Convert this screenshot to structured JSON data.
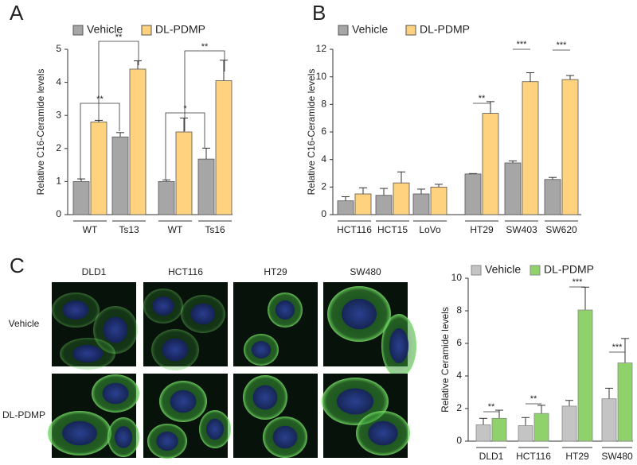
{
  "panels": [
    "A",
    "B",
    "C"
  ],
  "microscopy": {
    "columns": [
      "DLD1",
      "HCT116",
      "HT29",
      "SW480"
    ],
    "rows": [
      "Vehicle",
      "DL-PDMP"
    ]
  },
  "chart_data": [
    {
      "type": "bar",
      "ylabel": "Relative C16-Ceramide levels",
      "categories": [
        "WT",
        "Ts13",
        "WT",
        "Ts16"
      ],
      "series": [
        {
          "name": "Vehicle",
          "color": "#a6a6a6",
          "values": [
            1.0,
            2.35,
            1.0,
            1.68
          ],
          "errors": [
            0.08,
            0.13,
            0.05,
            0.33
          ]
        },
        {
          "name": "DL-PDMP",
          "color": "#ffd27f",
          "values": [
            2.8,
            4.4,
            2.5,
            4.05
          ],
          "errors": [
            0.05,
            0.25,
            0.42,
            0.62
          ]
        }
      ],
      "ylim": [
        0,
        5
      ],
      "yticks": [
        0,
        1,
        2,
        3,
        4,
        5
      ],
      "annotations": [
        "**",
        "**",
        "*",
        "**"
      ]
    },
    {
      "type": "bar",
      "ylabel": "Relative C16-Ceramide levels",
      "categories": [
        "HCT116",
        "HCT15",
        "LoVo",
        "HT29",
        "SW403",
        "SW620"
      ],
      "series": [
        {
          "name": "Vehicle",
          "color": "#a6a6a6",
          "values": [
            1.0,
            1.4,
            1.5,
            2.95,
            3.75,
            2.55
          ],
          "errors": [
            0.3,
            0.5,
            0.35,
            0.03,
            0.15,
            0.15
          ]
        },
        {
          "name": "DL-PDMP",
          "color": "#ffd27f",
          "values": [
            1.5,
            2.3,
            2.0,
            7.35,
            9.65,
            9.8
          ],
          "errors": [
            0.45,
            0.8,
            0.2,
            0.85,
            0.65,
            0.3
          ]
        }
      ],
      "ylim": [
        0,
        12
      ],
      "yticks": [
        0,
        2,
        4,
        6,
        8,
        10,
        12
      ],
      "annotations": [
        "**",
        "***",
        "***"
      ]
    },
    {
      "type": "bar",
      "ylabel": "Relative  Ceramide levels",
      "categories": [
        "DLD1",
        "HCT116",
        "HT29",
        "SW480"
      ],
      "series": [
        {
          "name": "Vehicle",
          "color": "#c4c4c4",
          "values": [
            1.0,
            0.95,
            2.15,
            2.6
          ],
          "errors": [
            0.4,
            0.5,
            0.35,
            0.65
          ]
        },
        {
          "name": "DL-PDMP",
          "color": "#8fd16a",
          "values": [
            1.4,
            1.7,
            8.05,
            4.8
          ],
          "errors": [
            0.5,
            0.5,
            1.4,
            1.5
          ]
        }
      ],
      "ylim": [
        0,
        10
      ],
      "yticks": [
        0,
        2,
        4,
        6,
        8,
        10
      ],
      "annotations": [
        "**",
        "**",
        "***",
        "***"
      ]
    }
  ]
}
